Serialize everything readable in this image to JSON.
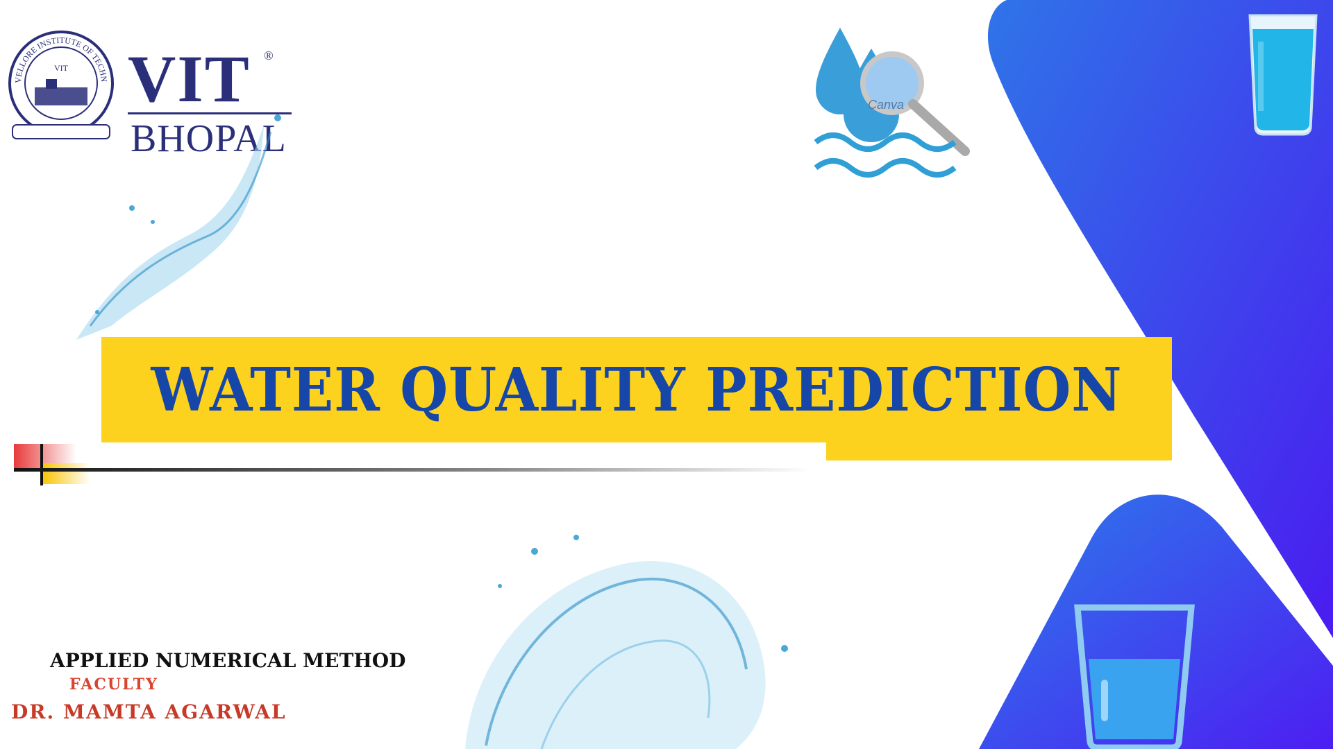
{
  "slide": {
    "title": "WATER QUALITY PREDICTION",
    "course": "APPLIED NUMERICAL METHOD",
    "faculty_label": "FACULTY",
    "faculty_name": "DR. MAMTA AGARWAL"
  },
  "logo": {
    "institute": "VIT",
    "campus": "BHOPAL",
    "registered_mark": "®",
    "seal_text": "VELLORE INSTITUTE OF TECHNOLOGY"
  },
  "watermark": "Canva",
  "colors": {
    "banner": "#fcd21e",
    "title": "#1546a8",
    "logo": "#2b2f7a",
    "accent_red": "#d9442f",
    "blue_gradient_start": "#2f74e8",
    "blue_gradient_end": "#4a1cf0",
    "water": "#2aa6d8"
  },
  "icons": [
    "water-drop-magnifier-icon",
    "water-glass-full-icon",
    "water-glass-half-icon",
    "water-splash-icon"
  ]
}
